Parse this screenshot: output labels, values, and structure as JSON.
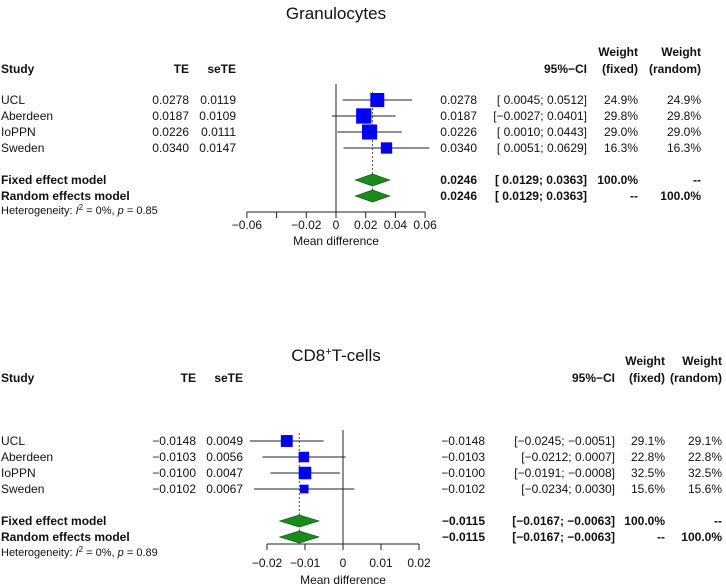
{
  "chart_data": [
    {
      "type": "forest",
      "title": [
        "Granulocytes"
      ],
      "headers": {
        "study": "Study",
        "te": "TE",
        "sete": "seTE",
        "ci": "95%−CI",
        "weight1": "Weight",
        "weight2": "Weight",
        "fixed": "(fixed)",
        "random": "(random)"
      },
      "studies": [
        {
          "name": "UCL",
          "te": 0.0278,
          "sete": 0.0119,
          "te_s": "0.0278",
          "sete_s": "0.0119",
          "ci_s": "[ 0.0045; 0.0512]",
          "lower": 0.0045,
          "upper": 0.0512,
          "wf": "24.9%",
          "wr": "24.9%",
          "weight": 24.9
        },
        {
          "name": "Aberdeen",
          "te": 0.0187,
          "sete": 0.0109,
          "te_s": "0.0187",
          "sete_s": "0.0109",
          "ci_s": "[−0.0027; 0.0401]",
          "lower": -0.0027,
          "upper": 0.0401,
          "wf": "29.8%",
          "wr": "29.8%",
          "weight": 29.8
        },
        {
          "name": "IoPPN",
          "te": 0.0226,
          "sete": 0.0111,
          "te_s": "0.0226",
          "sete_s": "0.0111",
          "ci_s": "[ 0.0010; 0.0443]",
          "lower": 0.001,
          "upper": 0.0443,
          "wf": "29.0%",
          "wr": "29.0%",
          "weight": 29.0
        },
        {
          "name": "Sweden",
          "te": 0.034,
          "sete": 0.0147,
          "te_s": "0.0340",
          "sete_s": "0.0147",
          "ci_s": "[ 0.0051; 0.0629]",
          "lower": 0.0051,
          "upper": 0.0629,
          "wf": "16.3%",
          "wr": "16.3%",
          "weight": 16.3
        }
      ],
      "models": [
        {
          "name": "Fixed effect model",
          "te": 0.0246,
          "lower": 0.0129,
          "upper": 0.0363,
          "te_s": "0.0246",
          "ci_s": "[ 0.0129; 0.0363]",
          "wf": "100.0%",
          "wr": "--"
        },
        {
          "name": "Random effects model",
          "te": 0.0246,
          "lower": 0.0129,
          "upper": 0.0363,
          "te_s": "0.0246",
          "ci_s": "[ 0.0129; 0.0363]",
          "wf": "--",
          "wr": "100.0%"
        }
      ],
      "heterogeneity": [
        "Heterogeneity: ",
        "I",
        "2",
        " = 0%, ",
        "p",
        " = 0.85"
      ],
      "xlabel": "Mean difference",
      "ticks": [
        -0.06,
        -0.04,
        -0.02,
        0,
        0.02,
        0.04,
        0.06
      ],
      "tick_labels": [
        "−0.06",
        "",
        "−0.02",
        "0",
        "0.02",
        "0.04",
        "0.06"
      ],
      "xlim": [
        -0.06,
        0.06
      ]
    },
    {
      "type": "forest",
      "title": [
        "CD8",
        "+",
        "T-cells"
      ],
      "headers": {
        "study": "Study",
        "te": "TE",
        "sete": "seTE",
        "ci": "95%−CI",
        "weight1": "Weight",
        "weight2": "Weight",
        "fixed": "(fixed)",
        "random": "(random)"
      },
      "studies": [
        {
          "name": "UCL",
          "te": -0.0148,
          "sete": 0.0049,
          "te_s": "−0.0148",
          "sete_s": "0.0049",
          "ci_s": "[−0.0245; −0.0051]",
          "lower": -0.0245,
          "upper": -0.0051,
          "wf": "29.1%",
          "wr": "29.1%",
          "weight": 29.1
        },
        {
          "name": "Aberdeen",
          "te": -0.0103,
          "sete": 0.0056,
          "te_s": "−0.0103",
          "sete_s": "0.0056",
          "ci_s": "[−0.0212; 0.0007]",
          "lower": -0.0212,
          "upper": 0.0007,
          "wf": "22.8%",
          "wr": "22.8%",
          "weight": 22.8
        },
        {
          "name": "IoPPN",
          "te": -0.01,
          "sete": 0.0047,
          "te_s": "−0.0100",
          "sete_s": "0.0047",
          "ci_s": "[−0.0191; −0.0008]",
          "lower": -0.0191,
          "upper": -0.0008,
          "wf": "32.5%",
          "wr": "32.5%",
          "weight": 32.5
        },
        {
          "name": "Sweden",
          "te": -0.0102,
          "sete": 0.0067,
          "te_s": "−0.0102",
          "sete_s": "0.0067",
          "ci_s": "[−0.0234; 0.0030]",
          "lower": -0.0234,
          "upper": 0.003,
          "wf": "15.6%",
          "wr": "15.6%",
          "weight": 15.6
        }
      ],
      "models": [
        {
          "name": "Fixed effect model",
          "te": -0.0115,
          "lower": -0.0167,
          "upper": -0.0063,
          "te_s": "−0.0115",
          "ci_s": "[−0.0167; −0.0063]",
          "wf": "100.0%",
          "wr": "--"
        },
        {
          "name": "Random effects model",
          "te": -0.0115,
          "lower": -0.0167,
          "upper": -0.0063,
          "te_s": "−0.0115",
          "ci_s": "[−0.0167; −0.0063]",
          "wf": "--",
          "wr": "100.0%"
        }
      ],
      "heterogeneity": [
        "Heterogeneity: ",
        "I",
        "2",
        " = 0%, ",
        "p",
        " = 0.89"
      ],
      "xlabel": "Mean difference",
      "ticks": [
        -0.02,
        -0.01,
        0,
        0.01,
        0.02
      ],
      "tick_labels": [
        "−0.02",
        "−0.01",
        "0",
        "0.01",
        "0.02"
      ],
      "xlim": [
        -0.02,
        0.02
      ]
    }
  ],
  "colors": {
    "square": "#0000ff",
    "diamond": "#1a8a1a",
    "line": "#222222"
  }
}
